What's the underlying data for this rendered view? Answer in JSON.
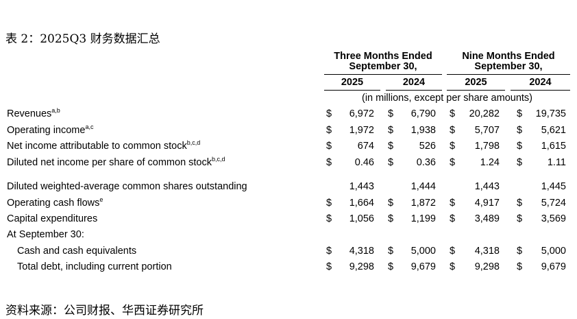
{
  "title": "表 2：2025Q3 财务数据汇总",
  "table": {
    "groups": [
      {
        "lines": [
          "Three Months Ended",
          "September 30,"
        ]
      },
      {
        "lines": [
          "Nine Months Ended",
          "September 30,"
        ]
      }
    ],
    "columns": [
      "2025",
      "2024",
      "2025",
      "2024"
    ],
    "unit_note": "(in millions, except per share amounts)",
    "rows": [
      {
        "label": "Revenues",
        "note": "a,b",
        "currency": "$",
        "cells": [
          "6,972",
          "6,790",
          "20,282",
          "19,735"
        ]
      },
      {
        "label": "Operating income",
        "note": "a,c",
        "currency": "$",
        "cells": [
          "1,972",
          "1,938",
          "5,707",
          "5,621"
        ]
      },
      {
        "label": "Net income attributable to common stock",
        "note": "b,c,d",
        "currency": "$",
        "cells": [
          "674",
          "526",
          "1,798",
          "1,615"
        ]
      },
      {
        "label": "Diluted net income per share of common stock",
        "note": "b,c,d",
        "currency": "$",
        "cells": [
          "0.46",
          "0.36",
          "1.24",
          "1.11"
        ]
      },
      {
        "label": "Diluted weighted-average common shares outstanding",
        "cells": [
          "1,443",
          "1,444",
          "1,443",
          "1,445"
        ]
      },
      {
        "label": "Operating cash flows",
        "note": "e",
        "currency": "$",
        "cells": [
          "1,664",
          "1,872",
          "4,917",
          "5,724"
        ]
      },
      {
        "label": "Capital expenditures",
        "currency": "$",
        "cells": [
          "1,056",
          "1,199",
          "3,489",
          "3,569"
        ]
      },
      {
        "label": "At September 30:"
      },
      {
        "label": "Cash and cash equivalents",
        "indent": true,
        "currency": "$",
        "cells": [
          "4,318",
          "5,000",
          "4,318",
          "5,000"
        ]
      },
      {
        "label": "Total debt, including current portion",
        "indent": true,
        "currency": "$",
        "cells": [
          "9,298",
          "9,679",
          "9,298",
          "9,679"
        ]
      }
    ]
  },
  "source": "资料来源：公司财报、华西证券研究所"
}
